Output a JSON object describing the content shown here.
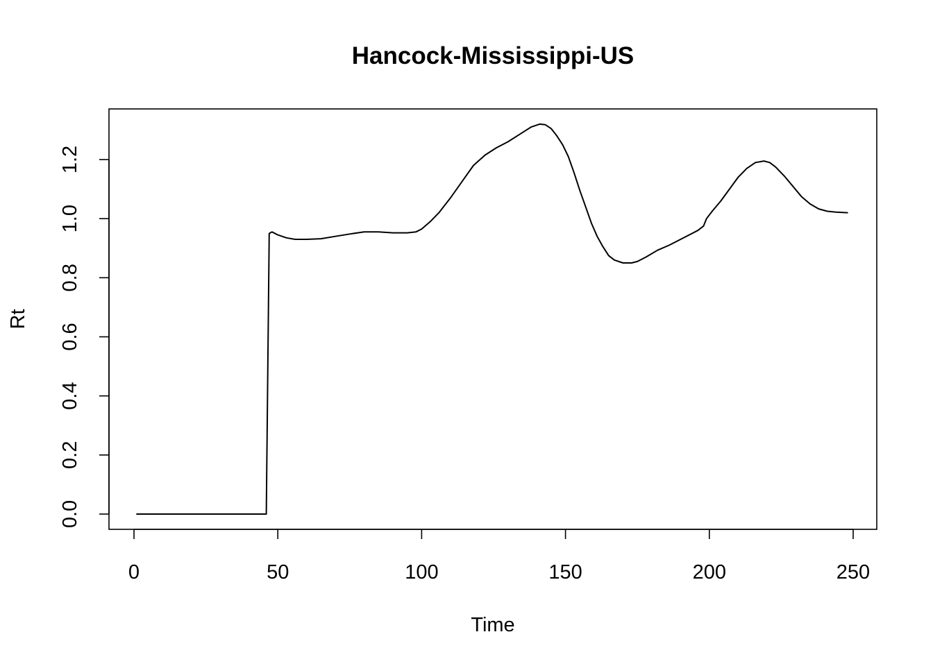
{
  "chart_data": {
    "type": "line",
    "title": "Hancock-Mississippi-US",
    "xlabel": "Time",
    "ylabel": "Rt",
    "xlim": [
      1,
      248
    ],
    "ylim": [
      0,
      1.32
    ],
    "x_ticks": [
      0,
      50,
      100,
      150,
      200,
      250
    ],
    "x_tick_labels": [
      "0",
      "50",
      "100",
      "150",
      "200",
      "250"
    ],
    "y_ticks": [
      0.0,
      0.2,
      0.4,
      0.6,
      0.8,
      1.0,
      1.2
    ],
    "y_tick_labels": [
      "0.0",
      "0.2",
      "0.4",
      "0.6",
      "0.8",
      "1.0",
      "1.2"
    ],
    "grid": false,
    "legend": "none",
    "line_color": "#000000",
    "series": [
      {
        "x": [
          1,
          10,
          20,
          30,
          40,
          46,
          47,
          48,
          50,
          53,
          56,
          60,
          65,
          70,
          75,
          80,
          85,
          90,
          95,
          98,
          100,
          103,
          106,
          110,
          114,
          118,
          122,
          126,
          130,
          134,
          138,
          141,
          143,
          145,
          147,
          149,
          151,
          153,
          155,
          157,
          159,
          161,
          163,
          165,
          167,
          170,
          173,
          175,
          178,
          182,
          186,
          190,
          193,
          196,
          198,
          199,
          201,
          204,
          207,
          210,
          213,
          216,
          219,
          221,
          223,
          226,
          229,
          232,
          235,
          238,
          241,
          244,
          248
        ],
        "y": [
          0.0,
          0.0,
          0.0,
          0.0,
          0.0,
          0.0,
          0.95,
          0.955,
          0.945,
          0.935,
          0.93,
          0.93,
          0.932,
          0.94,
          0.948,
          0.955,
          0.955,
          0.952,
          0.952,
          0.955,
          0.965,
          0.99,
          1.02,
          1.07,
          1.125,
          1.18,
          1.215,
          1.24,
          1.26,
          1.285,
          1.31,
          1.32,
          1.318,
          1.305,
          1.28,
          1.25,
          1.21,
          1.155,
          1.095,
          1.04,
          0.985,
          0.94,
          0.905,
          0.875,
          0.86,
          0.85,
          0.85,
          0.855,
          0.87,
          0.893,
          0.91,
          0.93,
          0.945,
          0.96,
          0.975,
          1.0,
          1.025,
          1.06,
          1.1,
          1.14,
          1.17,
          1.19,
          1.195,
          1.19,
          1.175,
          1.145,
          1.11,
          1.075,
          1.05,
          1.033,
          1.025,
          1.022,
          1.02
        ]
      }
    ]
  }
}
